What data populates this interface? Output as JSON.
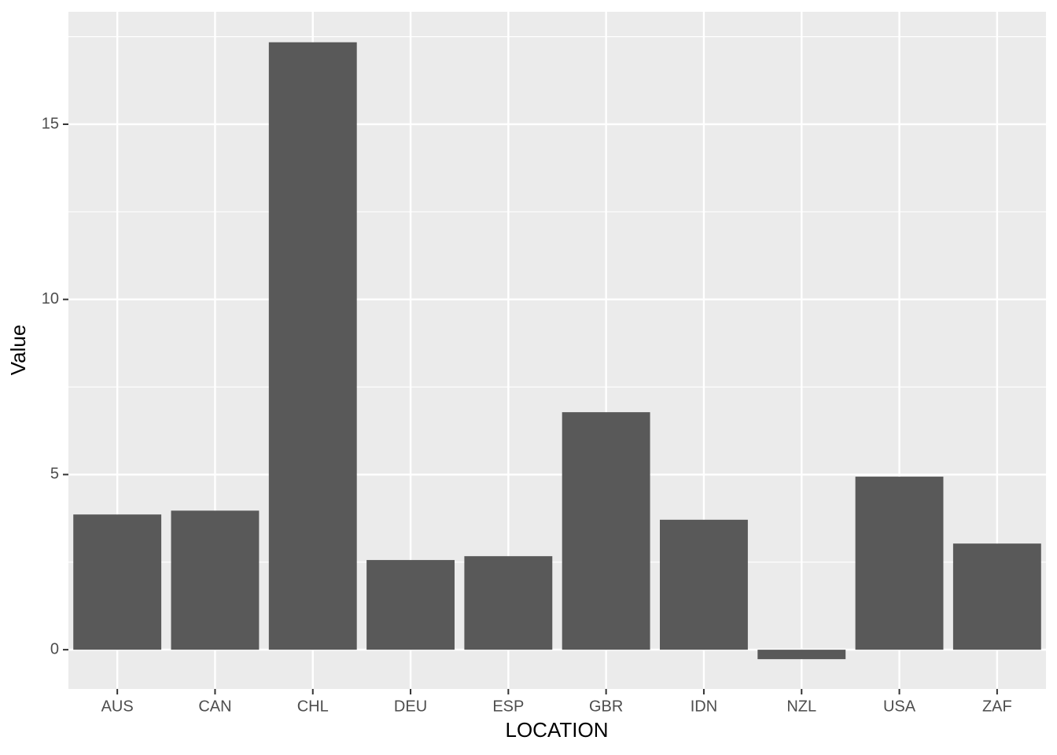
{
  "chart_data": {
    "type": "bar",
    "x_label": "LOCATION",
    "y_label": "Value",
    "categories": [
      "AUS",
      "CAN",
      "CHL",
      "DEU",
      "ESP",
      "GBR",
      "IDN",
      "NZL",
      "USA",
      "ZAF"
    ],
    "values": [
      3.86,
      3.97,
      17.34,
      2.56,
      2.67,
      6.78,
      3.71,
      -0.27,
      4.94,
      3.03
    ],
    "color": "#595959",
    "ylim": [
      -1.12,
      18.21
    ],
    "yticks": [
      0,
      5,
      10,
      15
    ],
    "minor_yticks": [
      2.5,
      7.5,
      12.5,
      17.5
    ],
    "grid": true
  }
}
